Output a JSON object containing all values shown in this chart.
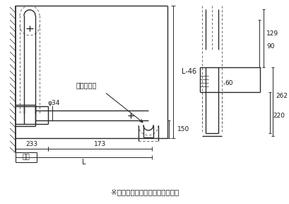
{
  "bg_color": "#ffffff",
  "line_color": "#2a2a2a",
  "dim_color": "#2a2a2a",
  "dashed_color": "#555555",
  "text_color": "#1a1a1a",
  "footer_text": "※水平の位置のみ固定できます。",
  "label_sosa": "操作レバー",
  "label_L46": "L-46",
  "label_phi34": "φ34",
  "label_150": "150",
  "label_233": "233",
  "label_173": "173",
  "label_L": "L",
  "label_kabe": "壁面",
  "label_129": "129",
  "label_90": "90",
  "label_60": "60",
  "label_262": "262",
  "label_220": "220",
  "lw_main": 1.0,
  "lw_thin": 0.6,
  "lw_dim": 0.65,
  "fs_label": 7.0,
  "fs_dim": 6.5
}
